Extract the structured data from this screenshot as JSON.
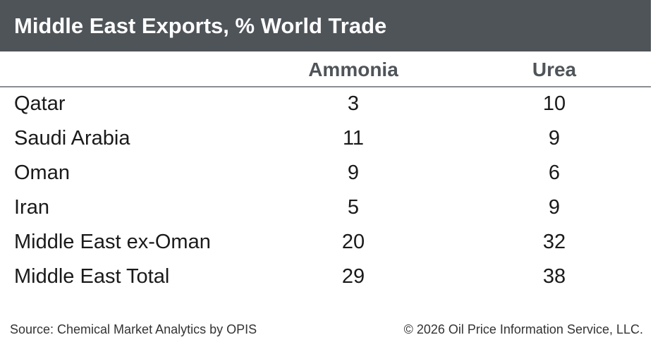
{
  "chart_data": {
    "type": "table",
    "title": "Middle East Exports, % World Trade",
    "columns": [
      "Ammonia",
      "Urea"
    ],
    "rows": [
      {
        "label": "Qatar",
        "values": [
          "3",
          "10"
        ]
      },
      {
        "label": "Saudi Arabia",
        "values": [
          "11",
          "9"
        ]
      },
      {
        "label": "Oman",
        "values": [
          "9",
          "6"
        ]
      },
      {
        "label": "Iran",
        "values": [
          "5",
          "9"
        ]
      },
      {
        "label": "Middle East ex-Oman",
        "values": [
          "20",
          "32"
        ]
      },
      {
        "label": "Middle East Total",
        "values": [
          "29",
          "38"
        ]
      }
    ]
  },
  "footer": {
    "source": "Source: Chemical Market Analytics by OPIS",
    "copyright": "© 2026 Oil Price Information Service, LLC."
  },
  "colors": {
    "title_bar": "#4f5459",
    "header_text": "#4f5459",
    "body_text": "#1a1a1a"
  }
}
